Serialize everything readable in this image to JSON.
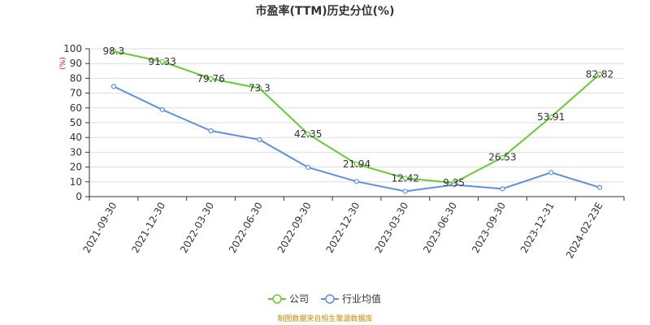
{
  "chart_data": {
    "type": "line",
    "title": "市盈率(TTM)历史分位(%)",
    "y_unit_label": "(%)",
    "categories": [
      "2021-09-30",
      "2021-12-30",
      "2022-03-30",
      "2022-06-30",
      "2022-09-30",
      "2022-12-30",
      "2023-03-30",
      "2023-06-30",
      "2023-09-30",
      "2023-12-31",
      "2024-02-23E"
    ],
    "ylim": [
      0,
      100
    ],
    "yticks": [
      0,
      10,
      20,
      30,
      40,
      50,
      60,
      70,
      80,
      90,
      100
    ],
    "grid": true,
    "legend_position": "bottom-center",
    "series": [
      {
        "name": "公司",
        "color": "#66cc33",
        "show_labels": true,
        "values": [
          98.3,
          91.33,
          79.76,
          73.3,
          42.35,
          21.94,
          12.42,
          9.35,
          26.53,
          53.91,
          82.82
        ],
        "labels": [
          "98.3",
          "91.33",
          "79.76",
          "73.3",
          "42.35",
          "21.94",
          "12.42",
          "9.35",
          "26.53",
          "53.91",
          "82.82"
        ]
      },
      {
        "name": "行业均值",
        "color": "#5b8ee6",
        "show_labels": false,
        "values": [
          74.5,
          58.8,
          44.5,
          38.5,
          19.8,
          10.2,
          3.6,
          8.0,
          5.3,
          16.3,
          6.2
        ]
      }
    ]
  },
  "source_text": "制图数据来自恒生聚源数据库",
  "colors": {
    "grid": "#dddddd",
    "axis": "#333333",
    "unit_label": "#ff0000",
    "source_text": "#cc8800"
  }
}
